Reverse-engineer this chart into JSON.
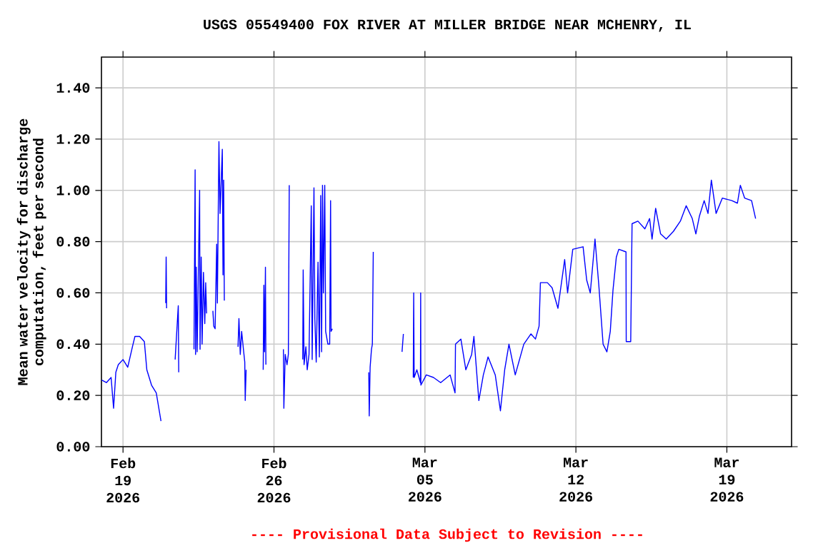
{
  "chart_data": {
    "type": "line",
    "title": "USGS 05549400 FOX RIVER AT MILLER BRIDGE NEAR MCHENRY, IL",
    "ylabel": "Mean water velocity for discharge computation, feet per second",
    "annotations": [
      "---- Provisional Data Subject to Revision ----"
    ],
    "color": "#0000ff",
    "grid": true,
    "xlim": [
      "2026-02-18",
      "2026-03-22"
    ],
    "ylim": [
      0,
      1.52
    ],
    "xticks": [
      {
        "value": "2026-02-19",
        "label": "Feb 19 2026"
      },
      {
        "value": "2026-02-26",
        "label": "Feb 26 2026"
      },
      {
        "value": "2026-03-05",
        "label": "Mar 05 2026"
      },
      {
        "value": "2026-03-12",
        "label": "Mar 12 2026"
      },
      {
        "value": "2026-03-19",
        "label": "Mar 19 2026"
      }
    ],
    "yticks": [
      {
        "value": 0,
        "label": "0.00"
      },
      {
        "value": 0.2,
        "label": "0.20"
      },
      {
        "value": 0.4,
        "label": "0.40"
      },
      {
        "value": 0.6,
        "label": "0.60"
      },
      {
        "value": 0.8,
        "label": "0.80"
      },
      {
        "value": 1.0,
        "label": "1.00"
      },
      {
        "value": 1.2,
        "label": "1.20"
      },
      {
        "value": 1.4,
        "label": "1.40"
      }
    ],
    "x": [
      "2026-02-18T00:15",
      "2026-02-18T05:30",
      "2026-02-18T10:45",
      "2026-02-18T13:30",
      "2026-02-18T16:00",
      "2026-02-18T18:45",
      "2026-02-19T00:00",
      "2026-02-19T05:15",
      "2026-02-19T10:30",
      "2026-02-19T13:15",
      "2026-02-19T18:30",
      "2026-02-19T23:45",
      "2026-02-20T02:30",
      "2026-02-20T07:45",
      "2026-02-20T13:00",
      "2026-02-20T18:15",
      "2026-02-20T21:00",
      "2026-02-20T23:30",
      "2026-02-21T00:00",
      "2026-02-21T00:30",
      "2026-02-21T05:00",
      "2026-02-21T10:00",
      "2026-02-21T13:30",
      "2026-02-21T14:00",
      "2026-02-22T00:00",
      "2026-02-22T07:00",
      "2026-02-22T08:15",
      "2026-02-22T08:45",
      "2026-02-22T09:30",
      "2026-02-22T10:30",
      "2026-02-22T13:15",
      "2026-02-22T13:45",
      "2026-02-22T15:00",
      "2026-02-22T16:00",
      "2026-02-22T17:30",
      "2026-02-22T19:00",
      "2026-02-22T20:00",
      "2026-02-22T21:00",
      "2026-02-23T00:00",
      "2026-02-23T04:00",
      "2026-02-23T05:00",
      "2026-02-23T06:30",
      "2026-02-23T08:15",
      "2026-02-23T09:00",
      "2026-02-23T10:45",
      "2026-02-23T12:00",
      "2026-02-23T14:30",
      "2026-02-23T15:15",
      "2026-02-23T16:00",
      "2026-02-23T16:45",
      "2026-02-24T00:00",
      "2026-02-24T08:00",
      "2026-02-24T09:00",
      "2026-02-24T10:30",
      "2026-02-24T12:00",
      "2026-02-24T14:00",
      "2026-02-24T15:30",
      "2026-02-24T16:00",
      "2026-02-24T17:00",
      "2026-02-25T00:00",
      "2026-02-25T12:00",
      "2026-02-25T12:45",
      "2026-02-25T13:30",
      "2026-02-25T14:30",
      "2026-02-25T15:00",
      "2026-02-26T00:00",
      "2026-02-26T10:30",
      "2026-02-26T11:00",
      "2026-02-26T12:30",
      "2026-02-26T14:30",
      "2026-02-26T16:00",
      "2026-02-26T17:00",
      "2026-02-27T00:00",
      "2026-02-27T08:00",
      "2026-02-27T08:30",
      "2026-02-27T09:30",
      "2026-02-27T11:30",
      "2026-02-27T13:00",
      "2026-02-27T15:00",
      "2026-02-27T17:30",
      "2026-02-27T18:30",
      "2026-02-27T20:30",
      "2026-02-27T21:30",
      "2026-02-27T23:00",
      "2026-02-28T01:00",
      "2026-02-28T02:30",
      "2026-02-28T04:00",
      "2026-02-28T05:00",
      "2026-02-28T06:00",
      "2026-02-28T07:00",
      "2026-02-28T08:30",
      "2026-02-28T09:30",
      "2026-02-28T12:00",
      "2026-02-28T14:00",
      "2026-02-28T15:00",
      "2026-02-28T15:30",
      "2026-02-28T17:00",
      "2026-03-01T00:00",
      "2026-03-02T09:30",
      "2026-03-02T10:00",
      "2026-03-02T11:00",
      "2026-03-02T12:30",
      "2026-03-02T13:30",
      "2026-03-02T14:30",
      "2026-03-03T00:00",
      "2026-03-03T22:30",
      "2026-03-04T00:00",
      "2026-03-04T06:00",
      "2026-03-04T11:00",
      "2026-03-04T11:30",
      "2026-03-04T12:00",
      "2026-03-04T15:00",
      "2026-03-04T19:00",
      "2026-03-04T19:15",
      "2026-03-04T19:30",
      "2026-03-05T01:30",
      "2026-03-05T09:30",
      "2026-03-05T17:30",
      "2026-03-06T04:00",
      "2026-03-06T09:30",
      "2026-03-06T10:00",
      "2026-03-06T16:00",
      "2026-03-06T21:30",
      "2026-03-07T04:00",
      "2026-03-07T06:30",
      "2026-03-07T12:00",
      "2026-03-07T17:00",
      "2026-03-07T22:15",
      "2026-03-08T06:15",
      "2026-03-08T12:00",
      "2026-03-08T16:45",
      "2026-03-08T21:30",
      "2026-03-09T04:30",
      "2026-03-09T14:00",
      "2026-03-09T22:00",
      "2026-03-10T03:00",
      "2026-03-10T07:00",
      "2026-03-10T08:30",
      "2026-03-10T16:15",
      "2026-03-10T21:30",
      "2026-03-11T04:00",
      "2026-03-11T11:30",
      "2026-03-11T14:45",
      "2026-03-11T20:30",
      "2026-03-12T08:00",
      "2026-03-12T12:00",
      "2026-03-12T16:00",
      "2026-03-12T21:15",
      "2026-03-13T01:30",
      "2026-03-13T06:15",
      "2026-03-13T10:30",
      "2026-03-13T14:15",
      "2026-03-13T17:15",
      "2026-03-13T21:00",
      "2026-03-13T23:45",
      "2026-03-14T07:45",
      "2026-03-14T08:00",
      "2026-03-14T13:00",
      "2026-03-14T14:30",
      "2026-03-14T21:00",
      "2026-03-15T04:45",
      "2026-03-15T10:00",
      "2026-03-15T12:45",
      "2026-03-15T16:45",
      "2026-03-15T22:15",
      "2026-03-16T04:30",
      "2026-03-16T12:30",
      "2026-03-16T20:15",
      "2026-03-17T02:45",
      "2026-03-17T09:30",
      "2026-03-17T13:30",
      "2026-03-17T17:30",
      "2026-03-17T22:45",
      "2026-03-18T03:00",
      "2026-03-18T06:45",
      "2026-03-18T12:00",
      "2026-03-18T19:00",
      "2026-03-19T05:30",
      "2026-03-19T11:45",
      "2026-03-19T15:00",
      "2026-03-19T19:45",
      "2026-03-20T03:30",
      "2026-03-20T08:00"
    ],
    "values": [
      0.26,
      0.25,
      0.27,
      0.15,
      0.29,
      0.32,
      0.34,
      0.31,
      0.39,
      0.43,
      0.43,
      0.41,
      0.3,
      0.24,
      0.21,
      0.1,
      null,
      0.56,
      0.74,
      0.54,
      null,
      0.34,
      0.55,
      0.29,
      null,
      0.38,
      1.08,
      0.36,
      0.7,
      0.37,
      1.0,
      0.38,
      0.74,
      0.4,
      0.68,
      0.48,
      0.64,
      0.52,
      null,
      0.53,
      0.47,
      0.46,
      0.79,
      0.56,
      1.19,
      0.91,
      1.16,
      0.67,
      1.04,
      0.57,
      null,
      0.39,
      0.5,
      0.36,
      0.45,
      0.38,
      0.33,
      0.18,
      0.3,
      null,
      0.3,
      0.63,
      0.37,
      0.7,
      0.32,
      null,
      0.38,
      0.15,
      0.36,
      0.32,
      0.36,
      1.02,
      null,
      0.34,
      0.69,
      0.32,
      0.39,
      0.3,
      0.36,
      0.94,
      0.34,
      1.01,
      0.5,
      0.33,
      0.72,
      0.35,
      0.98,
      0.37,
      1.02,
      0.6,
      1.02,
      0.45,
      0.4,
      0.4,
      0.96,
      0.45,
      0.46,
      null,
      0.29,
      0.12,
      0.31,
      0.38,
      0.4,
      0.76,
      null,
      0.37,
      0.44,
      null,
      0.27,
      0.6,
      0.27,
      0.3,
      0.25,
      0.6,
      0.24,
      0.28,
      0.27,
      0.25,
      0.28,
      0.21,
      0.4,
      0.42,
      0.3,
      0.36,
      0.43,
      0.18,
      0.28,
      0.35,
      0.28,
      0.14,
      0.3,
      0.4,
      0.28,
      0.4,
      0.44,
      0.42,
      0.47,
      0.64,
      0.64,
      0.62,
      0.54,
      0.73,
      0.6,
      0.77,
      0.78,
      0.65,
      0.6,
      0.81,
      0.63,
      0.4,
      0.37,
      0.45,
      0.61,
      0.74,
      0.77,
      0.76,
      0.41,
      0.41,
      0.87,
      0.88,
      0.85,
      0.89,
      0.81,
      0.93,
      0.83,
      0.81,
      0.84,
      0.88,
      0.94,
      0.89,
      0.83,
      0.9,
      0.96,
      0.91,
      1.04,
      0.91,
      0.97,
      0.96,
      0.95,
      1.02,
      0.97,
      0.96,
      0.89
    ]
  }
}
